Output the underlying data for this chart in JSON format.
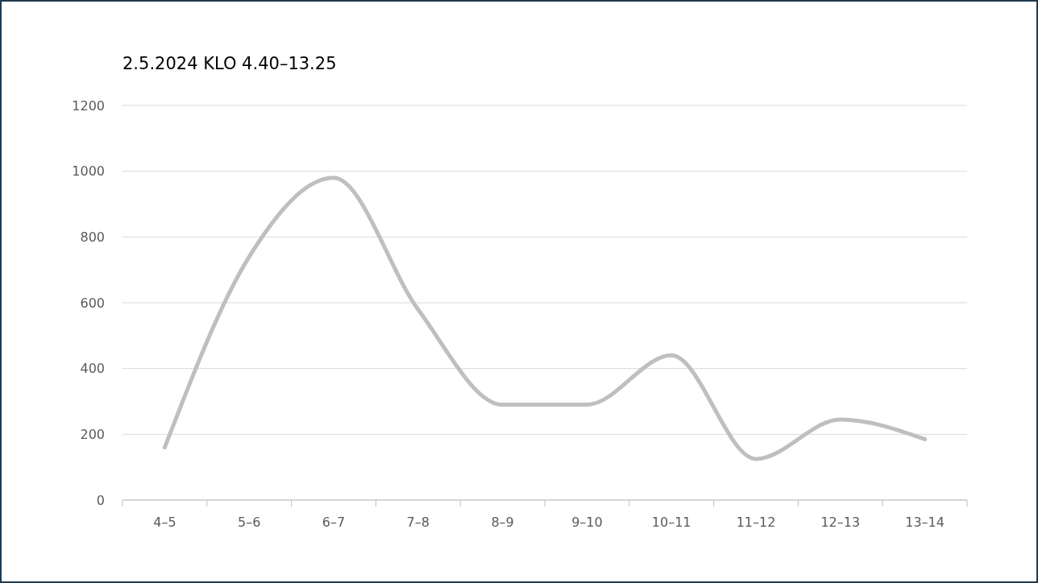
{
  "chart_data": {
    "type": "line",
    "title": "2.5.2024 KLO 4.40–13.25",
    "categories": [
      "4–5",
      "5–6",
      "6–7",
      "7–8",
      "8–9",
      "9–10",
      "10–11",
      "11–12",
      "12–13",
      "13–14"
    ],
    "series": [
      {
        "color": "#bfbfbf",
        "values": [
          160,
          740,
          980,
          580,
          290,
          290,
          440,
          125,
          245,
          185
        ]
      }
    ],
    "ylim": [
      0,
      1200
    ],
    "yticks": [
      0,
      200,
      400,
      600,
      800,
      1000,
      1200
    ],
    "grid": "y",
    "marker": "none",
    "line_style": "solid"
  }
}
